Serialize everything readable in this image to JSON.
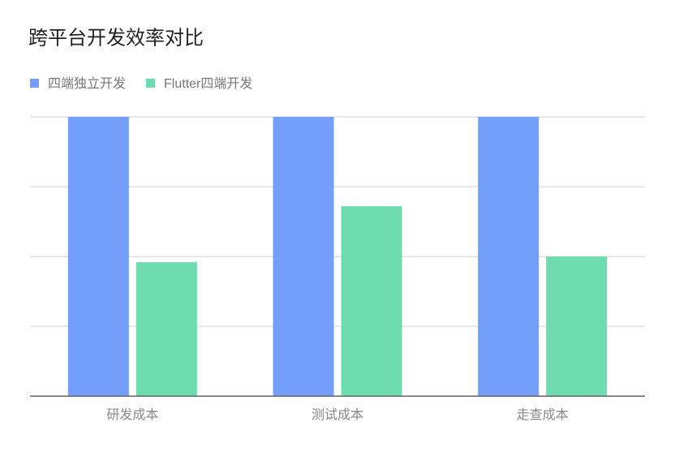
{
  "chart_data": {
    "type": "bar",
    "title": "跨平台开发效率对比",
    "categories": [
      "研发成本",
      "测试成本",
      "走查成本"
    ],
    "series": [
      {
        "name": "四端独立开发",
        "color": "#739ffa",
        "values": [
          100,
          100,
          100
        ]
      },
      {
        "name": "Flutter四端开发",
        "color": "#6fdcb0",
        "values": [
          48,
          68,
          50
        ]
      }
    ],
    "ylim": [
      0,
      100
    ],
    "yticks": [
      0,
      25,
      50,
      75,
      100
    ],
    "grid": true,
    "legend": "top-left"
  }
}
